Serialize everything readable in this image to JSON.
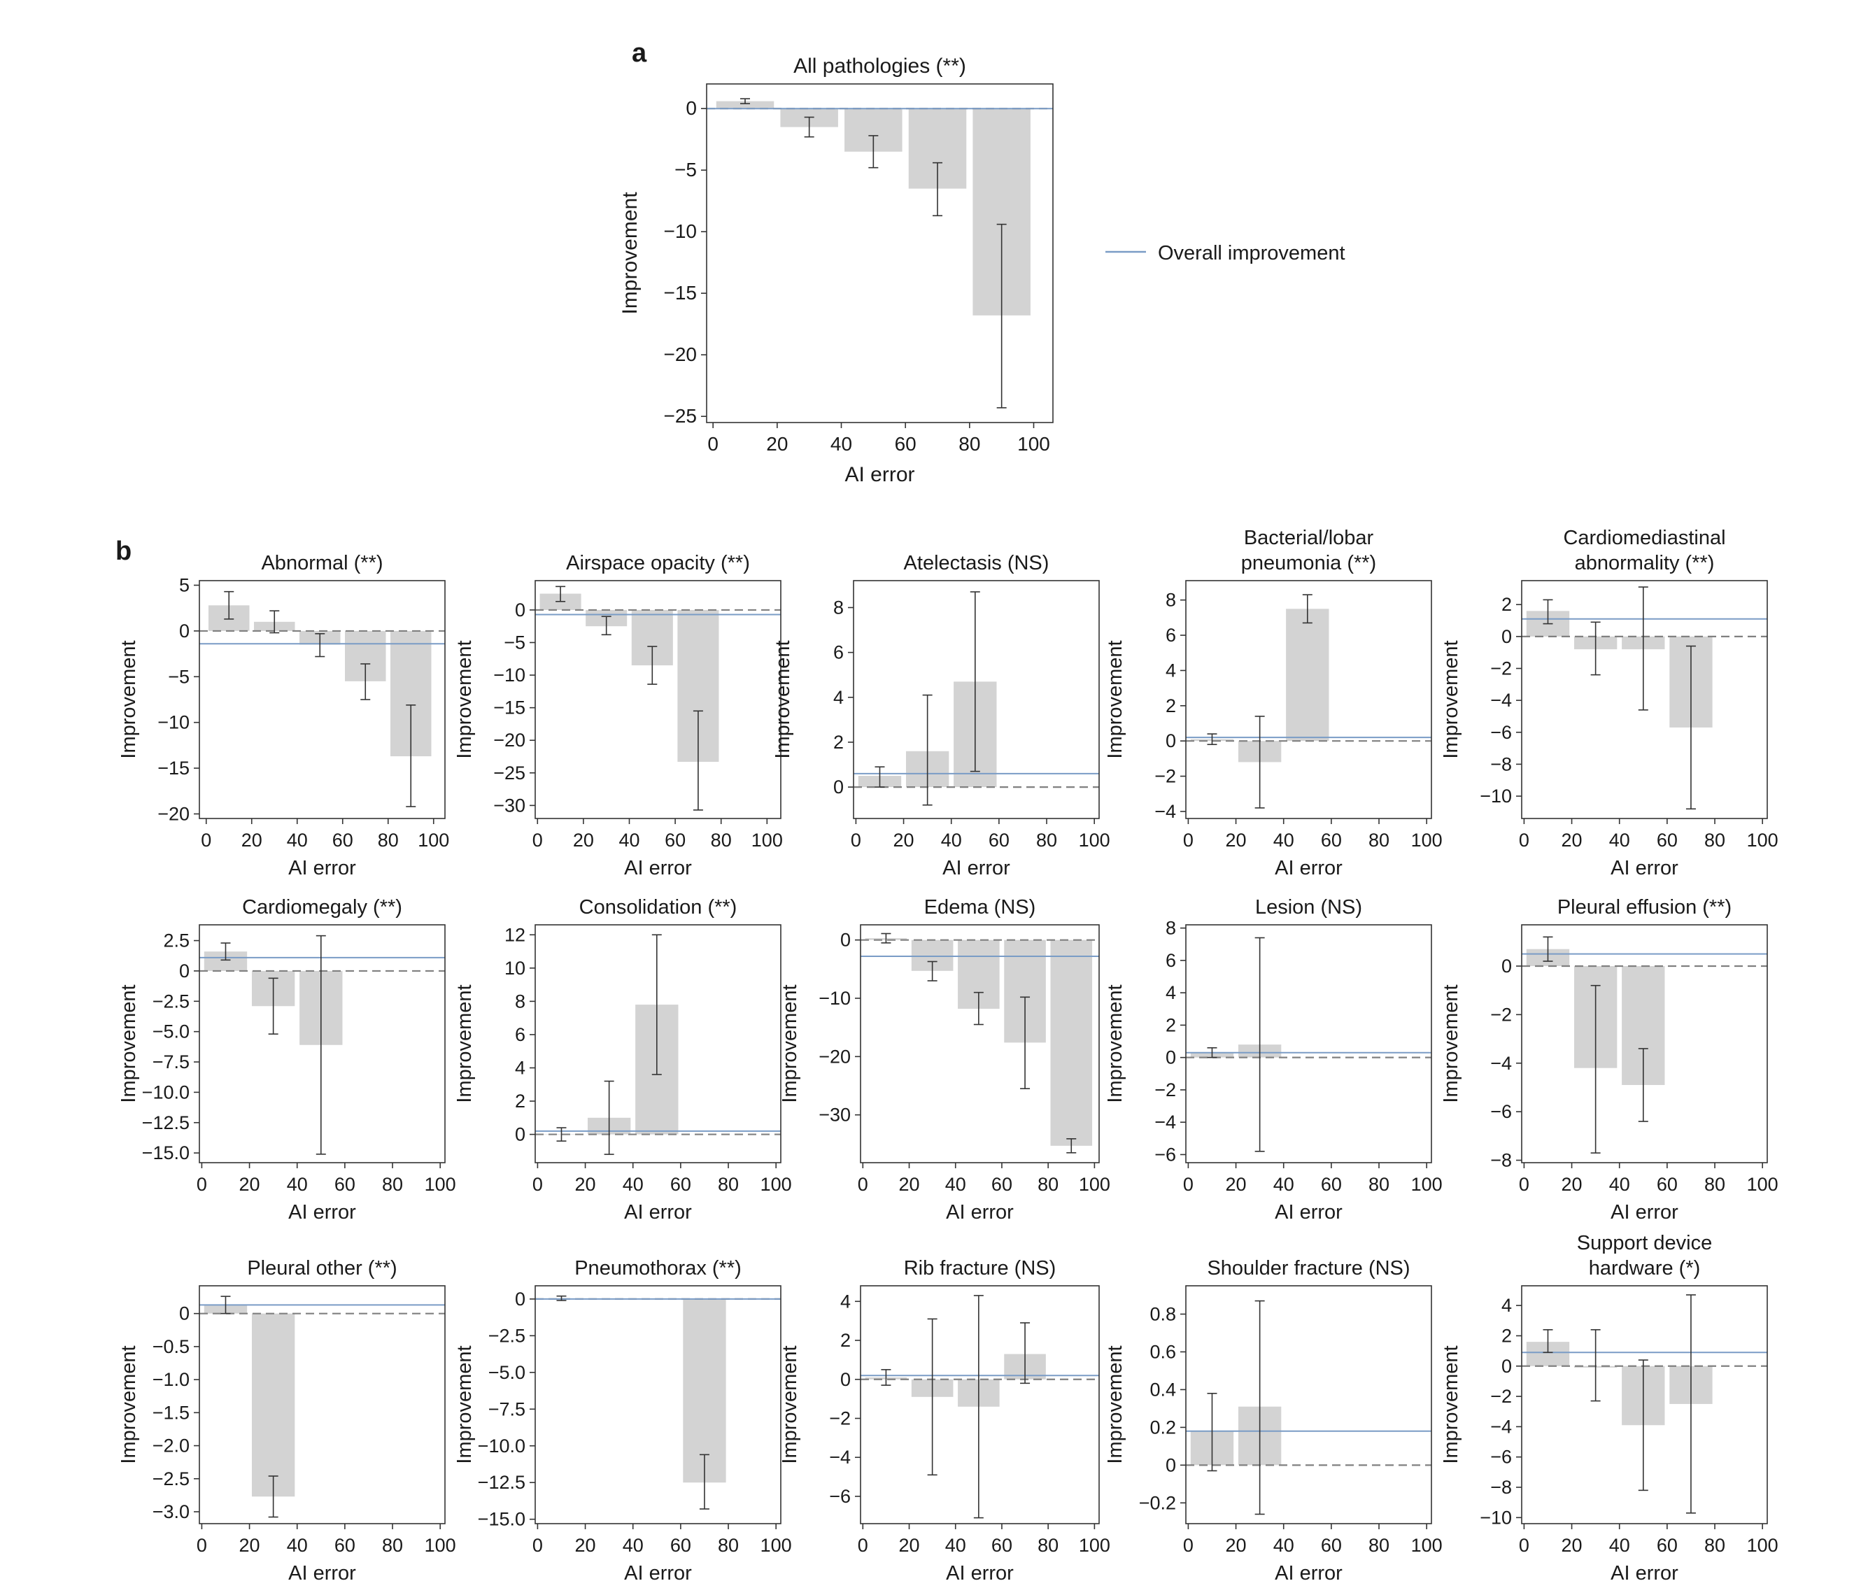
{
  "panel_labels": {
    "a": "a",
    "b": "b"
  },
  "legend": {
    "label": "Overall improvement"
  },
  "colors": {
    "bar": "#d3d3d3",
    "overall_line": "#7a9cc6",
    "zero_line": "#808080",
    "error_bar": "#333333",
    "axis": "#333333"
  },
  "chart_data": [
    {
      "type": "bar",
      "title": "All pathologies (**)",
      "xlabel": "AI error",
      "ylabel": "Improvement",
      "x": [
        10,
        30,
        50,
        70,
        90
      ],
      "values": [
        0.6,
        -1.5,
        -3.5,
        -6.5,
        -16.8
      ],
      "err_low": [
        0.4,
        -2.3,
        -4.8,
        -8.7,
        -24.3
      ],
      "err_high": [
        0.8,
        -0.7,
        -2.2,
        -4.4,
        -9.4
      ],
      "overall": 0.0,
      "xlim": [
        -2,
        106
      ],
      "ylim": [
        -25.5,
        2
      ],
      "yticks": [
        0,
        -5,
        -10,
        -15,
        -20,
        -25
      ],
      "ytick_labels": [
        "0",
        "−5",
        "−10",
        "−15",
        "−20",
        "−25"
      ],
      "xticks": [
        0,
        20,
        40,
        60,
        80,
        100
      ],
      "xtick_labels": [
        "0",
        "20",
        "40",
        "60",
        "80",
        "100"
      ]
    },
    {
      "type": "bar",
      "title": "Abnormal (**)",
      "xlabel": "AI error",
      "ylabel": "Improvement",
      "x": [
        10,
        30,
        50,
        70,
        90
      ],
      "values": [
        2.8,
        1.0,
        -1.5,
        -5.5,
        -13.7
      ],
      "err_low": [
        1.3,
        -0.2,
        -2.8,
        -7.5,
        -19.2
      ],
      "err_high": [
        4.3,
        2.2,
        -0.3,
        -3.6,
        -8.1
      ],
      "overall": -1.4,
      "xlim": [
        -3,
        105
      ],
      "ylim": [
        -20.5,
        5.5
      ],
      "yticks": [
        5,
        0,
        -5,
        -10,
        -15,
        -20
      ],
      "ytick_labels": [
        "5",
        "0",
        "−5",
        "−10",
        "−15",
        "−20"
      ],
      "xticks": [
        0,
        20,
        40,
        60,
        80,
        100
      ],
      "xtick_labels": [
        "0",
        "20",
        "40",
        "60",
        "80",
        "100"
      ]
    },
    {
      "type": "bar",
      "title": "Airspace opacity (**)",
      "xlabel": "AI error",
      "ylabel": "Improvement",
      "x": [
        10,
        30,
        50,
        70
      ],
      "values": [
        2.5,
        -2.5,
        -8.5,
        -23.3
      ],
      "err_low": [
        1.3,
        -3.8,
        -11.4,
        -30.7
      ],
      "err_high": [
        3.6,
        -1.0,
        -5.6,
        -15.5
      ],
      "overall": -0.7,
      "xlim": [
        -1,
        106
      ],
      "ylim": [
        -32,
        4.5
      ],
      "yticks": [
        0,
        -5,
        -10,
        -15,
        -20,
        -25,
        -30
      ],
      "ytick_labels": [
        "0",
        "−5",
        "−10",
        "−15",
        "−20",
        "−25",
        "−30"
      ],
      "xticks": [
        0,
        20,
        40,
        60,
        80,
        100
      ],
      "xtick_labels": [
        "0",
        "20",
        "40",
        "60",
        "80",
        "100"
      ]
    },
    {
      "type": "bar",
      "title": "Atelectasis (NS)",
      "xlabel": "AI error",
      "ylabel": "Improvement",
      "x": [
        10,
        30,
        50
      ],
      "values": [
        0.5,
        1.6,
        4.7
      ],
      "err_low": [
        0.0,
        -0.8,
        0.7
      ],
      "err_high": [
        0.9,
        4.1,
        8.7
      ],
      "overall": 0.6,
      "xlim": [
        -1,
        102
      ],
      "ylim": [
        -1.4,
        9.2
      ],
      "yticks": [
        0,
        2,
        4,
        6,
        8
      ],
      "ytick_labels": [
        "0",
        "2",
        "4",
        "6",
        "8"
      ],
      "xticks": [
        0,
        20,
        40,
        60,
        80,
        100
      ],
      "xtick_labels": [
        "0",
        "20",
        "40",
        "60",
        "80",
        "100"
      ]
    },
    {
      "type": "bar",
      "title": "Bacterial/lobar pneumonia (**)",
      "title_lines": [
        "Bacterial/lobar",
        "pneumonia (**)"
      ],
      "xlabel": "AI error",
      "ylabel": "Improvement",
      "x": [
        10,
        30,
        50
      ],
      "values": [
        0.1,
        -1.2,
        7.5
      ],
      "err_low": [
        -0.2,
        -3.8,
        6.7
      ],
      "err_high": [
        0.4,
        1.4,
        8.3
      ],
      "overall": 0.2,
      "xlim": [
        -1,
        102
      ],
      "ylim": [
        -4.4,
        9.1
      ],
      "yticks": [
        8,
        6,
        4,
        2,
        0,
        -2,
        -4
      ],
      "ytick_labels": [
        "8",
        "6",
        "4",
        "2",
        "0",
        "−2",
        "−4"
      ],
      "xticks": [
        0,
        20,
        40,
        60,
        80,
        100
      ],
      "xtick_labels": [
        "0",
        "20",
        "40",
        "60",
        "80",
        "100"
      ]
    },
    {
      "type": "bar",
      "title": "Cardiomediastinal abnormality (**)",
      "title_lines": [
        "Cardiomediastinal",
        "abnormality (**)"
      ],
      "xlabel": "AI error",
      "ylabel": "Improvement",
      "x": [
        10,
        30,
        50,
        70
      ],
      "values": [
        1.6,
        -0.8,
        -0.8,
        -5.7
      ],
      "err_low": [
        0.8,
        -2.4,
        -4.6,
        -10.8
      ],
      "err_high": [
        2.3,
        0.9,
        3.1,
        -0.6
      ],
      "overall": 1.1,
      "xlim": [
        -1,
        102
      ],
      "ylim": [
        -11.4,
        3.5
      ],
      "yticks": [
        2,
        0,
        -2,
        -4,
        -6,
        -8,
        -10
      ],
      "ytick_labels": [
        "2",
        "0",
        "−2",
        "−4",
        "−6",
        "−8",
        "−10"
      ],
      "xticks": [
        0,
        20,
        40,
        60,
        80,
        100
      ],
      "xtick_labels": [
        "0",
        "20",
        "40",
        "60",
        "80",
        "100"
      ]
    },
    {
      "type": "bar",
      "title": "Cardiomegaly (**)",
      "xlabel": "AI error",
      "ylabel": "Improvement",
      "x": [
        10,
        30,
        50
      ],
      "values": [
        1.6,
        -2.9,
        -6.1
      ],
      "err_low": [
        0.9,
        -5.2,
        -15.1
      ],
      "err_high": [
        2.3,
        -0.6,
        2.9
      ],
      "overall": 1.1,
      "xlim": [
        -1,
        102
      ],
      "ylim": [
        -15.8,
        3.8
      ],
      "yticks": [
        2.5,
        0,
        -2.5,
        -5,
        -7.5,
        -10,
        -12.5,
        -15
      ],
      "ytick_labels": [
        "2.5",
        "0",
        "−2.5",
        "−5.0",
        "−7.5",
        "−10.0",
        "−12.5",
        "−15.0"
      ],
      "xticks": [
        0,
        20,
        40,
        60,
        80,
        100
      ],
      "xtick_labels": [
        "0",
        "20",
        "40",
        "60",
        "80",
        "100"
      ]
    },
    {
      "type": "bar",
      "title": "Consolidation (**)",
      "xlabel": "AI error",
      "ylabel": "Improvement",
      "x": [
        10,
        30,
        50
      ],
      "values": [
        0.0,
        1.0,
        7.8
      ],
      "err_low": [
        -0.4,
        -1.2,
        3.6
      ],
      "err_high": [
        0.4,
        3.2,
        12.0
      ],
      "overall": 0.2,
      "xlim": [
        -1,
        102
      ],
      "ylim": [
        -1.7,
        12.6
      ],
      "yticks": [
        0,
        2,
        4,
        6,
        8,
        10,
        12
      ],
      "ytick_labels": [
        "0",
        "2",
        "4",
        "6",
        "8",
        "10",
        "12"
      ],
      "xticks": [
        0,
        20,
        40,
        60,
        80,
        100
      ],
      "xtick_labels": [
        "0",
        "20",
        "40",
        "60",
        "80",
        "100"
      ]
    },
    {
      "type": "bar",
      "title": "Edema (NS)",
      "xlabel": "AI error",
      "ylabel": "Improvement",
      "x": [
        10,
        30,
        50,
        70,
        90
      ],
      "values": [
        0.3,
        -5.3,
        -11.8,
        -17.6,
        -35.3
      ],
      "err_low": [
        -0.5,
        -7.0,
        -14.5,
        -25.5,
        -36.5
      ],
      "err_high": [
        1.1,
        -3.7,
        -9.0,
        -9.8,
        -34.1
      ],
      "overall": -2.8,
      "xlim": [
        -1,
        102
      ],
      "ylim": [
        -38.2,
        2.6
      ],
      "yticks": [
        0,
        -10,
        -20,
        -30
      ],
      "ytick_labels": [
        "0",
        "−10",
        "−20",
        "−30"
      ],
      "xticks": [
        0,
        20,
        40,
        60,
        80,
        100
      ],
      "xtick_labels": [
        "0",
        "20",
        "40",
        "60",
        "80",
        "100"
      ]
    },
    {
      "type": "bar",
      "title": "Lesion (NS)",
      "xlabel": "AI error",
      "ylabel": "Improvement",
      "x": [
        10,
        30
      ],
      "values": [
        0.3,
        0.8
      ],
      "err_low": [
        0.0,
        -5.8
      ],
      "err_high": [
        0.6,
        7.4
      ],
      "overall": 0.3,
      "xlim": [
        -1,
        102
      ],
      "ylim": [
        -6.5,
        8.2
      ],
      "yticks": [
        8,
        6,
        4,
        2,
        0,
        -2,
        -4,
        -6
      ],
      "ytick_labels": [
        "8",
        "6",
        "4",
        "2",
        "0",
        "−2",
        "−4",
        "−6"
      ],
      "xticks": [
        0,
        20,
        40,
        60,
        80,
        100
      ],
      "xtick_labels": [
        "0",
        "20",
        "40",
        "60",
        "80",
        "100"
      ]
    },
    {
      "type": "bar",
      "title": "Pleural effusion (**)",
      "xlabel": "AI error",
      "ylabel": "Improvement",
      "x": [
        10,
        30,
        50
      ],
      "values": [
        0.7,
        -4.2,
        -4.9
      ],
      "err_low": [
        0.2,
        -7.7,
        -6.4
      ],
      "err_high": [
        1.2,
        -0.8,
        -3.4
      ],
      "overall": 0.5,
      "xlim": [
        -1,
        102
      ],
      "ylim": [
        -8.1,
        1.7
      ],
      "yticks": [
        0,
        -2,
        -4,
        -6,
        -8
      ],
      "ytick_labels": [
        "0",
        "−2",
        "−4",
        "−6",
        "−8"
      ],
      "xticks": [
        0,
        20,
        40,
        60,
        80,
        100
      ],
      "xtick_labels": [
        "0",
        "20",
        "40",
        "60",
        "80",
        "100"
      ]
    },
    {
      "type": "bar",
      "title": "Pleural other (**)",
      "xlabel": "AI error",
      "ylabel": "Improvement",
      "x": [
        10,
        30
      ],
      "values": [
        0.13,
        -2.77
      ],
      "err_low": [
        0.0,
        -3.08
      ],
      "err_high": [
        0.26,
        -2.46
      ],
      "overall": 0.13,
      "xlim": [
        -1,
        102
      ],
      "ylim": [
        -3.18,
        0.42
      ],
      "yticks": [
        0,
        -0.5,
        -1,
        -1.5,
        -2,
        -2.5,
        -3
      ],
      "ytick_labels": [
        "0",
        "−0.5",
        "−1.0",
        "−1.5",
        "−2.0",
        "−2.5",
        "−3.0"
      ],
      "xticks": [
        0,
        20,
        40,
        60,
        80,
        100
      ],
      "xtick_labels": [
        "0",
        "20",
        "40",
        "60",
        "80",
        "100"
      ]
    },
    {
      "type": "bar",
      "title": "Pneumothorax (**)",
      "xlabel": "AI error",
      "ylabel": "Improvement",
      "x": [
        10,
        70
      ],
      "values": [
        0.0,
        -12.5
      ],
      "err_low": [
        -0.1,
        -14.3
      ],
      "err_high": [
        0.2,
        -10.6
      ],
      "overall": 0.0,
      "xlim": [
        -1,
        102
      ],
      "ylim": [
        -15.3,
        0.9
      ],
      "yticks": [
        0,
        -2.5,
        -5,
        -7.5,
        -10,
        -12.5,
        -15
      ],
      "ytick_labels": [
        "0",
        "−2.5",
        "−5.0",
        "−7.5",
        "−10.0",
        "−12.5",
        "−15.0"
      ],
      "xticks": [
        0,
        20,
        40,
        60,
        80,
        100
      ],
      "xtick_labels": [
        "0",
        "20",
        "40",
        "60",
        "80",
        "100"
      ]
    },
    {
      "type": "bar",
      "title": "Rib fracture (NS)",
      "xlabel": "AI error",
      "ylabel": "Improvement",
      "x": [
        10,
        30,
        50,
        70
      ],
      "values": [
        0.1,
        -0.9,
        -1.4,
        1.3
      ],
      "err_low": [
        -0.3,
        -4.9,
        -7.1,
        -0.2
      ],
      "err_high": [
        0.5,
        3.1,
        4.3,
        2.9
      ],
      "overall": 0.2,
      "xlim": [
        -1,
        102
      ],
      "ylim": [
        -7.4,
        4.8
      ],
      "yticks": [
        4,
        2,
        0,
        -2,
        -4,
        -6
      ],
      "ytick_labels": [
        "4",
        "2",
        "0",
        "−2",
        "−4",
        "−6"
      ],
      "xticks": [
        0,
        20,
        40,
        60,
        80,
        100
      ],
      "xtick_labels": [
        "0",
        "20",
        "40",
        "60",
        "80",
        "100"
      ]
    },
    {
      "type": "bar",
      "title": "Shoulder fracture (NS)",
      "xlabel": "AI error",
      "ylabel": "Improvement",
      "x": [
        10,
        30
      ],
      "values": [
        0.18,
        0.31
      ],
      "err_low": [
        -0.03,
        -0.26
      ],
      "err_high": [
        0.38,
        0.87
      ],
      "overall": 0.18,
      "xlim": [
        -1,
        102
      ],
      "ylim": [
        -0.31,
        0.95
      ],
      "yticks": [
        0.8,
        0.6,
        0.4,
        0.2,
        0,
        -0.2
      ],
      "ytick_labels": [
        "0.8",
        "0.6",
        "0.4",
        "0.2",
        "0",
        "−0.2"
      ],
      "xticks": [
        0,
        20,
        40,
        60,
        80,
        100
      ],
      "xtick_labels": [
        "0",
        "20",
        "40",
        "60",
        "80",
        "100"
      ]
    },
    {
      "type": "bar",
      "title": "Support device hardware (*)",
      "title_lines": [
        "Support device",
        "hardware (*)"
      ],
      "xlabel": "AI error",
      "ylabel": "Improvement",
      "x": [
        10,
        30,
        50,
        70
      ],
      "values": [
        1.6,
        -0.1,
        -3.9,
        -2.5
      ],
      "err_low": [
        0.9,
        -2.3,
        -8.2,
        -9.7
      ],
      "err_high": [
        2.4,
        2.4,
        0.4,
        4.7
      ],
      "overall": 0.9,
      "xlim": [
        -1,
        102
      ],
      "ylim": [
        -10.4,
        5.3
      ],
      "yticks": [
        4,
        2,
        0,
        -2,
        -4,
        -6,
        -8,
        -10
      ],
      "ytick_labels": [
        "4",
        "2",
        "0",
        "−2",
        "−4",
        "−6",
        "−8",
        "−10"
      ],
      "xticks": [
        0,
        20,
        40,
        60,
        80,
        100
      ],
      "xtick_labels": [
        "0",
        "20",
        "40",
        "60",
        "80",
        "100"
      ]
    }
  ]
}
